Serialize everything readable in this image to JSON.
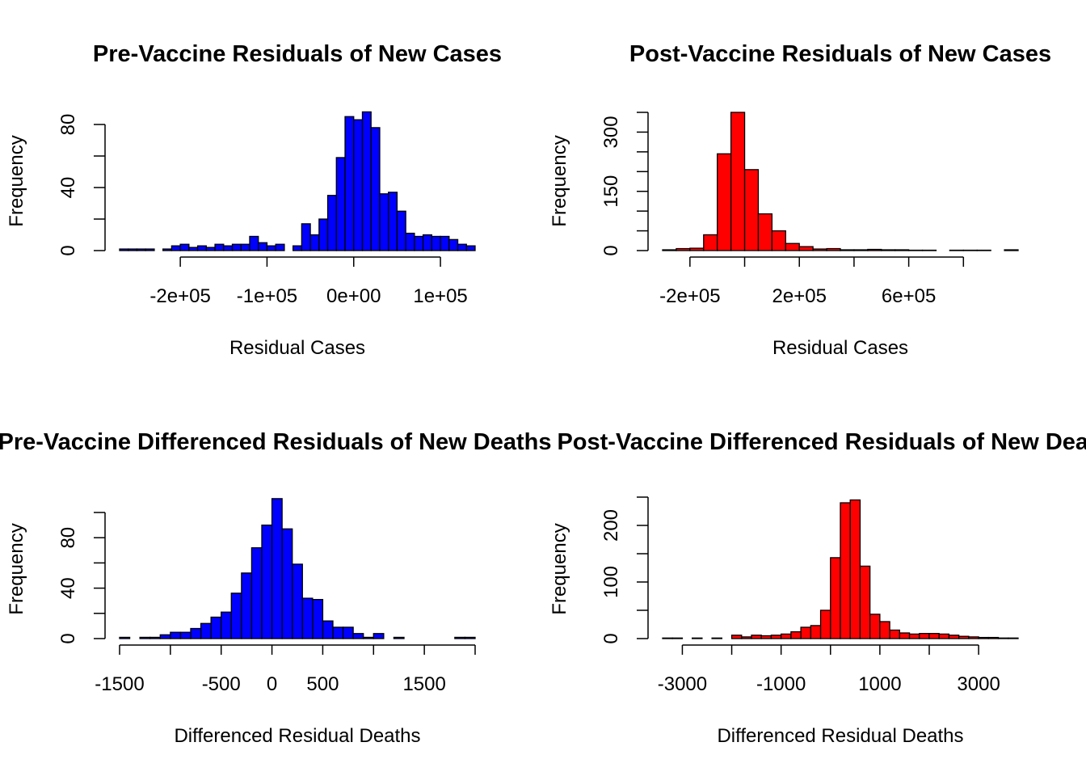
{
  "chart_data": [
    {
      "type": "histogram",
      "title": "Pre-Vaccine Residuals of New Cases",
      "xlabel": "Residual Cases",
      "ylabel": "Frequency",
      "fill": "#0000ff",
      "bins": {
        "start": -270000,
        "width": 10000
      },
      "counts": [
        1,
        1,
        1,
        1,
        0,
        1,
        3,
        4,
        2,
        3,
        2,
        4,
        3,
        4,
        4,
        9,
        5,
        3,
        4,
        0,
        3,
        17,
        10,
        20,
        35,
        59,
        85,
        83,
        88,
        78,
        36,
        37,
        25,
        11,
        9,
        10,
        9,
        9,
        7,
        4,
        3
      ],
      "xticks": [
        {
          "value": -200000,
          "label": "-2e+05"
        },
        {
          "value": -100000,
          "label": "-1e+05"
        },
        {
          "value": 0,
          "label": "0e+00"
        },
        {
          "value": 100000,
          "label": "1e+05"
        }
      ],
      "yticks": [
        {
          "value": 0,
          "label": "0"
        },
        {
          "value": 20,
          "label": ""
        },
        {
          "value": 40,
          "label": "40"
        },
        {
          "value": 60,
          "label": ""
        },
        {
          "value": 80,
          "label": "80"
        }
      ]
    },
    {
      "type": "histogram",
      "title": "Post-Vaccine Residuals of New Cases",
      "xlabel": "Residual Cases",
      "ylabel": "Frequency",
      "fill": "#ff0000",
      "bins": {
        "start": -300000,
        "width": 50000
      },
      "counts": [
        2,
        5,
        6,
        40,
        245,
        350,
        205,
        93,
        50,
        18,
        10,
        4,
        5,
        2,
        2,
        3,
        2,
        2,
        1,
        1,
        0,
        1,
        1,
        1,
        0,
        2
      ],
      "xticks": [
        {
          "value": -200000,
          "label": "-2e+05"
        },
        {
          "value": 0,
          "label": ""
        },
        {
          "value": 200000,
          "label": "2e+05"
        },
        {
          "value": 400000,
          "label": ""
        },
        {
          "value": 600000,
          "label": "6e+05"
        },
        {
          "value": 800000,
          "label": ""
        }
      ],
      "yticks": [
        {
          "value": 0,
          "label": "0"
        },
        {
          "value": 50,
          "label": ""
        },
        {
          "value": 100,
          "label": ""
        },
        {
          "value": 150,
          "label": "150"
        },
        {
          "value": 200,
          "label": ""
        },
        {
          "value": 250,
          "label": ""
        },
        {
          "value": 300,
          "label": "300"
        },
        {
          "value": 350,
          "label": ""
        }
      ]
    },
    {
      "type": "histogram",
      "title": "Pre-Vaccine Differenced Residuals of New Deaths",
      "xlabel": "Differenced Residual Deaths",
      "ylabel": "Frequency",
      "fill": "#0000ff",
      "bins": {
        "start": -1500,
        "width": 100
      },
      "counts": [
        1,
        0,
        1,
        1,
        3,
        5,
        5,
        8,
        12,
        17,
        21,
        36,
        52,
        72,
        90,
        111,
        87,
        59,
        32,
        31,
        14,
        9,
        9,
        4,
        1,
        4,
        0,
        1,
        0,
        0,
        0,
        0,
        0,
        1,
        1
      ],
      "xticks": [
        {
          "value": -1500,
          "label": "-1500"
        },
        {
          "value": -1000,
          "label": ""
        },
        {
          "value": -500,
          "label": "-500"
        },
        {
          "value": 0,
          "label": "0"
        },
        {
          "value": 500,
          "label": "500"
        },
        {
          "value": 1000,
          "label": ""
        },
        {
          "value": 1500,
          "label": "1500"
        },
        {
          "value": 2000,
          "label": ""
        }
      ],
      "yticks": [
        {
          "value": 0,
          "label": "0"
        },
        {
          "value": 20,
          "label": ""
        },
        {
          "value": 40,
          "label": "40"
        },
        {
          "value": 60,
          "label": ""
        },
        {
          "value": 80,
          "label": "80"
        },
        {
          "value": 100,
          "label": ""
        }
      ]
    },
    {
      "type": "histogram",
      "title": "Post-Vaccine Differenced Residuals of New Deaths",
      "xlabel": "Differenced Residual Deaths",
      "ylabel": "Frequency",
      "fill": "#ff0000",
      "bins": {
        "start": -3400,
        "width": 200
      },
      "counts": [
        1,
        1,
        0,
        1,
        0,
        1,
        0,
        6,
        3,
        6,
        5,
        6,
        8,
        12,
        20,
        23,
        50,
        143,
        240,
        245,
        128,
        43,
        30,
        15,
        10,
        8,
        9,
        9,
        8,
        6,
        4,
        3,
        2,
        2,
        1,
        1
      ],
      "xticks": [
        {
          "value": -3000,
          "label": "-3000"
        },
        {
          "value": -2000,
          "label": ""
        },
        {
          "value": -1000,
          "label": "-1000"
        },
        {
          "value": 0,
          "label": ""
        },
        {
          "value": 1000,
          "label": "1000"
        },
        {
          "value": 2000,
          "label": ""
        },
        {
          "value": 3000,
          "label": "3000"
        }
      ],
      "yticks": [
        {
          "value": 0,
          "label": "0"
        },
        {
          "value": 50,
          "label": ""
        },
        {
          "value": 100,
          "label": "100"
        },
        {
          "value": 150,
          "label": ""
        },
        {
          "value": 200,
          "label": "200"
        },
        {
          "value": 250,
          "label": ""
        }
      ]
    }
  ]
}
